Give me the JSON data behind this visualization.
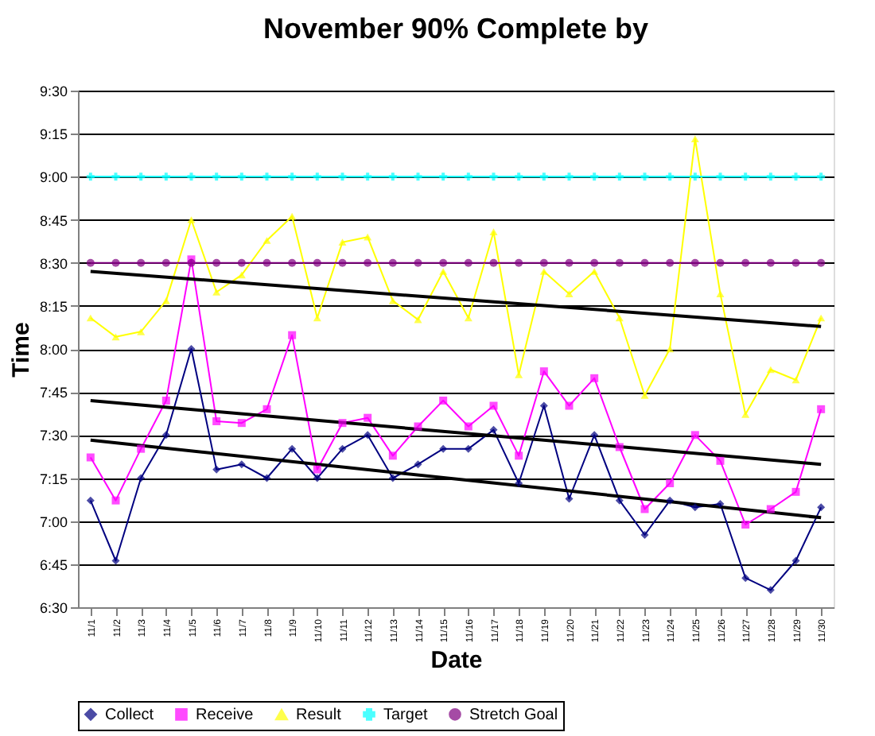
{
  "chart_data": {
    "type": "line",
    "title": "November 90% Complete by",
    "xlabel": "Date",
    "ylabel": "Time",
    "categories": [
      "11/1",
      "11/2",
      "11/3",
      "11/4",
      "11/5",
      "11/6",
      "11/7",
      "11/8",
      "11/9",
      "11/10",
      "11/11",
      "11/12",
      "11/13",
      "11/14",
      "11/15",
      "11/16",
      "11/17",
      "11/18",
      "11/19",
      "11/20",
      "11/21",
      "11/22",
      "11/23",
      "11/24",
      "11/25",
      "11/26",
      "11/27",
      "11/28",
      "11/29",
      "11/30"
    ],
    "series": [
      {
        "name": "Collect",
        "color": "#000080",
        "marker": "diamond",
        "values": [
          7.12,
          6.77,
          7.25,
          7.5,
          8,
          7.3,
          7.33,
          7.25,
          7.42,
          7.25,
          7.42,
          7.5,
          7.25,
          7.33,
          7.42,
          7.42,
          7.53,
          7.22,
          7.67,
          7.13,
          7.5,
          7.12,
          6.92,
          7.12,
          7.08,
          7.1,
          6.67,
          6.6,
          6.77,
          7.08
        ]
      },
      {
        "name": "Receive",
        "color": "#ff00ff",
        "marker": "square",
        "values": [
          7.37,
          7.12,
          7.42,
          7.7,
          8.52,
          7.58,
          7.57,
          7.65,
          8.08,
          7.3,
          7.57,
          7.6,
          7.38,
          7.55,
          7.7,
          7.55,
          7.67,
          7.38,
          7.87,
          7.67,
          7.83,
          7.43,
          7.07,
          7.22,
          7.5,
          7.35,
          6.98,
          7.07,
          7.17,
          7.65
        ]
      },
      {
        "name": "Result",
        "color": "#ffff00",
        "marker": "triangle",
        "values": [
          8.18,
          8.07,
          8.1,
          8.28,
          8.75,
          8.33,
          8.43,
          8.63,
          8.77,
          8.18,
          8.62,
          8.65,
          8.28,
          8.17,
          8.45,
          8.18,
          8.68,
          7.85,
          8.45,
          8.32,
          8.45,
          8.18,
          7.73,
          8.0,
          9.22,
          8.32,
          7.62,
          7.88,
          7.82,
          8.18
        ]
      },
      {
        "name": "Target",
        "color": "#00ffff",
        "marker": "cross",
        "values": [
          9,
          9,
          9,
          9,
          9,
          9,
          9,
          9,
          9,
          9,
          9,
          9,
          9,
          9,
          9,
          9,
          9,
          9,
          9,
          9,
          9,
          9,
          9,
          9,
          9,
          9,
          9,
          9,
          9,
          9
        ]
      },
      {
        "name": "Stretch Goal",
        "color": "#800080",
        "marker": "circle",
        "values": [
          8.5,
          8.5,
          8.5,
          8.5,
          8.5,
          8.5,
          8.5,
          8.5,
          8.5,
          8.5,
          8.5,
          8.5,
          8.5,
          8.5,
          8.5,
          8.5,
          8.5,
          8.5,
          8.5,
          8.5,
          8.5,
          8.5,
          8.5,
          8.5,
          8.5,
          8.5,
          8.5,
          8.5,
          8.5,
          8.5
        ]
      },
      {
        "type": "line",
        "color": "#000000",
        "marker": "none",
        "x": [
          "11/1",
          "11/30"
        ],
        "values": [
          8.45,
          8.13
        ]
      },
      {
        "type": "line",
        "color": "#000000",
        "marker": "none",
        "x": [
          "11/1",
          "11/30"
        ],
        "values": [
          7.7,
          7.33
        ]
      },
      {
        "type": "line",
        "color": "#000000",
        "marker": "none",
        "x": [
          "11/1",
          "11/30"
        ],
        "values": [
          7.47,
          7.02
        ]
      }
    ],
    "ylim": [
      6.5,
      9.5
    ],
    "yticks": [
      {
        "value": 6.5,
        "label": "6:30"
      },
      {
        "value": 6.75,
        "label": "6:45"
      },
      {
        "value": 7,
        "label": "7:00"
      },
      {
        "value": 7.25,
        "label": "7:15"
      },
      {
        "value": 7.5,
        "label": "7:30"
      },
      {
        "value": 7.75,
        "label": "7:45"
      },
      {
        "value": 8,
        "label": "8:00"
      },
      {
        "value": 8.25,
        "label": "8:15"
      },
      {
        "value": 8.5,
        "label": "8:30"
      },
      {
        "value": 8.75,
        "label": "8:45"
      },
      {
        "value": 9,
        "label": "9:00"
      },
      {
        "value": 9.25,
        "label": "9:15"
      },
      {
        "value": 9.5,
        "label": "9:30"
      }
    ],
    "grid": "y",
    "legend": "bottom"
  }
}
